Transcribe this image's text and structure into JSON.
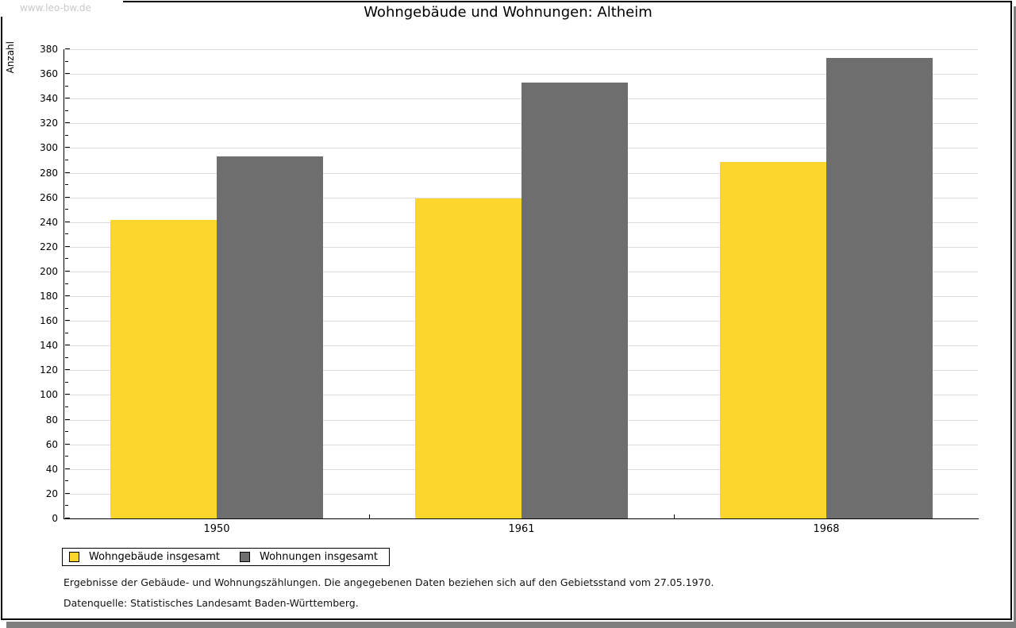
{
  "watermark": "www.leo-bw.de",
  "title": "Wohngebäude und Wohnungen: Altheim",
  "chart_data": {
    "type": "bar",
    "title": "Wohngebäude und Wohnungen: Altheim",
    "categories": [
      "1950",
      "1961",
      "1968"
    ],
    "series": [
      {
        "name": "Wohngebäude insgesamt",
        "color": "#fcd62c",
        "values": [
          242,
          259,
          289
        ]
      },
      {
        "name": "Wohnungen insgesamt",
        "color": "#6e6e6e",
        "values": [
          293,
          353,
          373
        ]
      }
    ],
    "ylabel": "Anzahl",
    "xlabel": "",
    "ylim": [
      0,
      380
    ],
    "yticks": [
      0,
      20,
      40,
      60,
      80,
      100,
      120,
      140,
      160,
      180,
      200,
      220,
      240,
      260,
      280,
      300,
      320,
      340,
      360,
      380
    ],
    "yminor_step": 10,
    "ytick_step": 20,
    "grid": true,
    "legend_position": "bottom-left"
  },
  "footer": {
    "line1": "Ergebnisse der Gebäude- und Wohnungszählungen. Die angegebenen Daten beziehen sich auf den Gebietsstand vom 27.05.1970.",
    "line2": "Datenquelle: Statistisches Landesamt Baden-Württemberg."
  }
}
